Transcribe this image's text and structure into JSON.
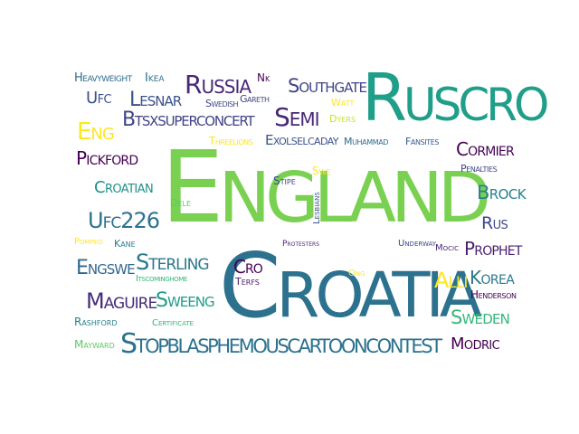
{
  "words": [
    {
      "text": "England",
      "color": "#7ad151"
    },
    {
      "text": "Croatia",
      "color": "#2c728e"
    },
    {
      "text": "Ruscro",
      "color": "#1f9e89"
    },
    {
      "text": "Stopblasphemouscartooncontest",
      "color": "#2c728e"
    },
    {
      "text": "Btsxsuperconcert",
      "color": "#414487"
    },
    {
      "text": "Russia",
      "color": "#482878"
    },
    {
      "text": "Lesnar",
      "color": "#3b528b"
    },
    {
      "text": "Semi",
      "color": "#482878"
    },
    {
      "text": "Southgate",
      "color": "#404688"
    },
    {
      "text": "Pickford",
      "color": "#440154"
    },
    {
      "text": "Croatian",
      "color": "#21918c"
    },
    {
      "text": "Ufc226",
      "color": "#2c728e"
    },
    {
      "text": "Engswe",
      "color": "#31688e"
    },
    {
      "text": "Sterling",
      "color": "#2a788e"
    },
    {
      "text": "Maguire",
      "color": "#472d7b"
    },
    {
      "text": "Sweeng",
      "color": "#1f9e89"
    },
    {
      "text": "Cormier",
      "color": "#440154"
    },
    {
      "text": "Brock",
      "color": "#26828e"
    },
    {
      "text": "Prophet",
      "color": "#481f70"
    },
    {
      "text": "Sweden",
      "color": "#35b779"
    },
    {
      "text": "Modric",
      "color": "#440154"
    },
    {
      "text": "Korea",
      "color": "#2a788e"
    },
    {
      "text": "Alli",
      "color": "#fde725"
    },
    {
      "text": "Rus",
      "color": "#3e4989"
    },
    {
      "text": "Eng",
      "color": "#fde725"
    },
    {
      "text": "Ufc",
      "color": "#3b528b"
    },
    {
      "text": "Heavyweight",
      "color": "#306a8e"
    },
    {
      "text": "Ikea",
      "color": "#2d708e"
    },
    {
      "text": "Nk",
      "color": "#440154"
    },
    {
      "text": "Gareth",
      "color": "#414487"
    },
    {
      "text": "Swedish",
      "color": "#3e4a89"
    },
    {
      "text": "Watt",
      "color": "#fde725"
    },
    {
      "text": "Dyers",
      "color": "#c8e020"
    },
    {
      "text": "Threelions",
      "color": "#fde725"
    },
    {
      "text": "Exolselcaday",
      "color": "#3b528b"
    },
    {
      "text": "Muhammad",
      "color": "#2e6e8e"
    },
    {
      "text": "Fansites",
      "color": "#38588c"
    },
    {
      "text": "Penalties",
      "color": "#3f4788"
    },
    {
      "text": "Stipe",
      "color": "#3e4989"
    },
    {
      "text": "Swe",
      "color": "#fde725"
    },
    {
      "text": "Dele",
      "color": "#5ec962"
    },
    {
      "text": "Pompeo",
      "color": "#fde725"
    },
    {
      "text": "Kane",
      "color": "#287d8e"
    },
    {
      "text": "Itscominghome",
      "color": "#35b779"
    },
    {
      "text": "Cro",
      "color": "#440154"
    },
    {
      "text": "Terfs",
      "color": "#48186a"
    },
    {
      "text": "Lesbians",
      "color": "#3b528b"
    },
    {
      "text": "Protesters",
      "color": "#482576"
    },
    {
      "text": "Underway",
      "color": "#3f4788"
    },
    {
      "text": "Mocic",
      "color": "#482878"
    },
    {
      "text": "Ong",
      "color": "#fde725"
    },
    {
      "text": "Henderson",
      "color": "#440154"
    },
    {
      "text": "Rashford",
      "color": "#27808e"
    },
    {
      "text": "Certificate",
      "color": "#35b779"
    },
    {
      "text": "Mayward",
      "color": "#5ec962"
    }
  ]
}
